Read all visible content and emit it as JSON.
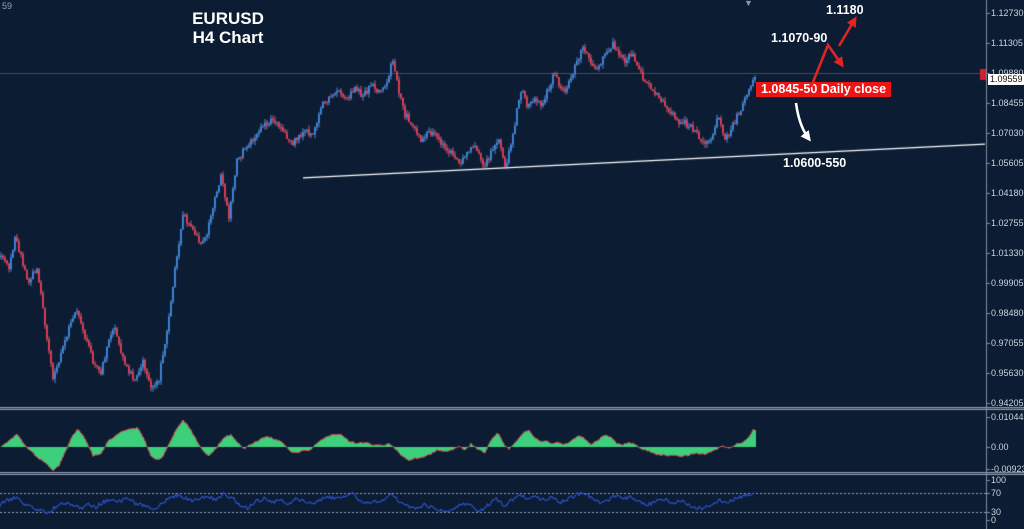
{
  "meta": {
    "leftover_text": "59",
    "caret_glyph": "▼"
  },
  "header": {
    "title_line1": "EURUSD",
    "title_line2": "H4 Chart"
  },
  "annotations": {
    "target_upper": "1.1180",
    "resistance_zone": "1.1070-90",
    "daily_close": "1.0845-50 Daily close",
    "support_zone": "1.0600-550"
  },
  "colors": {
    "background": "#0b1c33",
    "grid_line": "#3e4e62",
    "separator_light": "#929eae",
    "separator_dark": "#36415a",
    "axis_border": "#7f8fa0",
    "axis_text": "#cdd5dd",
    "candle_up": "#3f86de",
    "candle_up_wick": "#6fa5e6",
    "candle_down": "#e23c55",
    "candle_down_wick": "#e87286",
    "macd_fill": "#3ecf7d",
    "macd_line": "#cf4752",
    "rsi_line": "#2d51c8",
    "rsi_level": "#97a3b2",
    "trendline": "#ffffff",
    "badge_red": "#ee1414",
    "arrow_red": "#e02424",
    "arrow_white": "#ffffff",
    "current_price_marker": "#d02030"
  },
  "chart_data": [
    {
      "type": "candlestick",
      "symbol": "EURUSD",
      "timeframe": "H4",
      "title": "EURUSD H4 Chart",
      "panel": "price",
      "y_axis_labels": [
        "1.12730",
        "1.11305",
        "1.09880",
        "1.08455",
        "1.07030",
        "1.05605",
        "1.04180",
        "1.02755",
        "1.01330",
        "0.99905",
        "0.98480",
        "0.97055",
        "0.95630",
        "0.94205"
      ],
      "current_price_label": "1.09559",
      "current_price": 1.09559,
      "horizontal_level": 1.0988,
      "trendline_points": [
        [
          303,
          1.049
        ],
        [
          985,
          1.065
        ]
      ],
      "price_path_anchors": [
        [
          0,
          1.013
        ],
        [
          8,
          1.006
        ],
        [
          14,
          1.021
        ],
        [
          20,
          1.012
        ],
        [
          28,
          0.999
        ],
        [
          36,
          1.007
        ],
        [
          44,
          0.98
        ],
        [
          52,
          0.953
        ],
        [
          58,
          0.962
        ],
        [
          64,
          0.972
        ],
        [
          70,
          0.981
        ],
        [
          76,
          0.986
        ],
        [
          84,
          0.974
        ],
        [
          92,
          0.962
        ],
        [
          100,
          0.957
        ],
        [
          108,
          0.971
        ],
        [
          114,
          0.979
        ],
        [
          120,
          0.966
        ],
        [
          127,
          0.958
        ],
        [
          134,
          0.952
        ],
        [
          142,
          0.962
        ],
        [
          150,
          0.949
        ],
        [
          158,
          0.954
        ],
        [
          166,
          0.976
        ],
        [
          174,
          1.006
        ],
        [
          182,
          1.031
        ],
        [
          190,
          1.026
        ],
        [
          198,
          1.018
        ],
        [
          206,
          1.022
        ],
        [
          214,
          1.04
        ],
        [
          220,
          1.049
        ],
        [
          228,
          1.031
        ],
        [
          236,
          1.057
        ],
        [
          244,
          1.063
        ],
        [
          252,
          1.068
        ],
        [
          262,
          1.074
        ],
        [
          272,
          1.077
        ],
        [
          282,
          1.07
        ],
        [
          292,
          1.066
        ],
        [
          302,
          1.071
        ],
        [
          312,
          1.07
        ],
        [
          322,
          1.084
        ],
        [
          330,
          1.087
        ],
        [
          338,
          1.09
        ],
        [
          346,
          1.086
        ],
        [
          354,
          1.091
        ],
        [
          362,
          1.088
        ],
        [
          370,
          1.093
        ],
        [
          378,
          1.09
        ],
        [
          386,
          1.095
        ],
        [
          392,
          1.105
        ],
        [
          398,
          1.089
        ],
        [
          404,
          1.079
        ],
        [
          412,
          1.074
        ],
        [
          420,
          1.067
        ],
        [
          427,
          1.072
        ],
        [
          434,
          1.069
        ],
        [
          442,
          1.064
        ],
        [
          450,
          1.061
        ],
        [
          458,
          1.056
        ],
        [
          466,
          1.061
        ],
        [
          474,
          1.064
        ],
        [
          483,
          1.053
        ],
        [
          490,
          1.061
        ],
        [
          498,
          1.066
        ],
        [
          505,
          1.053
        ],
        [
          512,
          1.07
        ],
        [
          520,
          1.091
        ],
        [
          527,
          1.083
        ],
        [
          534,
          1.087
        ],
        [
          541,
          1.083
        ],
        [
          548,
          1.092
        ],
        [
          553,
          1.098
        ],
        [
          558,
          1.094
        ],
        [
          564,
          1.09
        ],
        [
          570,
          1.097
        ],
        [
          576,
          1.104
        ],
        [
          582,
          1.111
        ],
        [
          588,
          1.105
        ],
        [
          594,
          1.101
        ],
        [
          600,
          1.104
        ],
        [
          606,
          1.108
        ],
        [
          612,
          1.113
        ],
        [
          618,
          1.108
        ],
        [
          624,
          1.105
        ],
        [
          630,
          1.108
        ],
        [
          636,
          1.103
        ],
        [
          642,
          1.097
        ],
        [
          648,
          1.094
        ],
        [
          654,
          1.09
        ],
        [
          660,
          1.086
        ],
        [
          666,
          1.082
        ],
        [
          672,
          1.079
        ],
        [
          678,
          1.076
        ],
        [
          684,
          1.075
        ],
        [
          690,
          1.073
        ],
        [
          696,
          1.07
        ],
        [
          702,
          1.067
        ],
        [
          708,
          1.065
        ],
        [
          714,
          1.074
        ],
        [
          719,
          1.078
        ],
        [
          723,
          1.067
        ],
        [
          728,
          1.07
        ],
        [
          734,
          1.076
        ],
        [
          740,
          1.082
        ],
        [
          746,
          1.088
        ],
        [
          752,
          1.0956
        ]
      ]
    },
    {
      "type": "area",
      "name": "macd-histogram",
      "panel": "indicator-1",
      "y_axis_labels": [
        "0.010442",
        "0.00",
        "-0.009236"
      ],
      "zero": 0,
      "anchors": [
        [
          0,
          0.0
        ],
        [
          8,
          0.002
        ],
        [
          16,
          0.0044
        ],
        [
          24,
          0.0005
        ],
        [
          30,
          -0.0015
        ],
        [
          38,
          -0.004
        ],
        [
          46,
          -0.006
        ],
        [
          52,
          -0.008
        ],
        [
          58,
          -0.0065
        ],
        [
          64,
          -0.002
        ],
        [
          70,
          0.003
        ],
        [
          77,
          0.0064
        ],
        [
          84,
          0.003
        ],
        [
          92,
          -0.003
        ],
        [
          100,
          -0.0025
        ],
        [
          107,
          0.002
        ],
        [
          115,
          0.004
        ],
        [
          122,
          0.0055
        ],
        [
          130,
          0.0062
        ],
        [
          137,
          0.0067
        ],
        [
          144,
          0.002
        ],
        [
          150,
          -0.003
        ],
        [
          155,
          -0.0047
        ],
        [
          162,
          -0.0035
        ],
        [
          168,
          0.001
        ],
        [
          175,
          0.006
        ],
        [
          182,
          0.0094
        ],
        [
          188,
          0.007
        ],
        [
          196,
          0.002
        ],
        [
          203,
          -0.002
        ],
        [
          208,
          -0.003
        ],
        [
          214,
          -0.001
        ],
        [
          222,
          0.003
        ],
        [
          230,
          0.0044
        ],
        [
          238,
          0.001
        ],
        [
          243,
          -0.0007
        ],
        [
          250,
          0.001
        ],
        [
          258,
          0.0025
        ],
        [
          267,
          0.0037
        ],
        [
          276,
          0.0025
        ],
        [
          284,
          0.0008
        ],
        [
          290,
          -0.0015
        ],
        [
          296,
          -0.002
        ],
        [
          302,
          -0.001
        ],
        [
          308,
          -0.0012
        ],
        [
          315,
          0.001
        ],
        [
          325,
          0.0035
        ],
        [
          333,
          0.0044
        ],
        [
          340,
          0.0044
        ],
        [
          348,
          0.002
        ],
        [
          356,
          0.0012
        ],
        [
          364,
          0.0015
        ],
        [
          372,
          0.0008
        ],
        [
          380,
          0.0005
        ],
        [
          388,
          0.0012
        ],
        [
          394,
          -0.0005
        ],
        [
          400,
          -0.003
        ],
        [
          407,
          -0.0045
        ],
        [
          414,
          -0.004
        ],
        [
          422,
          -0.0035
        ],
        [
          430,
          -0.0025
        ],
        [
          437,
          -0.001
        ],
        [
          444,
          -0.0015
        ],
        [
          452,
          -0.0008
        ],
        [
          458,
          0.0005
        ],
        [
          464,
          -0.0012
        ],
        [
          470,
          0.0012
        ],
        [
          477,
          -0.001
        ],
        [
          484,
          -0.0018
        ],
        [
          490,
          0.0025
        ],
        [
          497,
          0.0052
        ],
        [
          503,
          0.001
        ],
        [
          508,
          -0.0008
        ],
        [
          515,
          0.002
        ],
        [
          521,
          0.0045
        ],
        [
          527,
          0.006
        ],
        [
          533,
          0.0035
        ],
        [
          539,
          0.0018
        ],
        [
          545,
          0.0022
        ],
        [
          551,
          0.0012
        ],
        [
          557,
          0.0018
        ],
        [
          563,
          0.0008
        ],
        [
          570,
          0.002
        ],
        [
          577,
          0.004
        ],
        [
          583,
          0.0032
        ],
        [
          590,
          0.0008
        ],
        [
          597,
          0.0025
        ],
        [
          604,
          0.0042
        ],
        [
          610,
          0.0035
        ],
        [
          616,
          0.0012
        ],
        [
          622,
          0.0008
        ],
        [
          628,
          0.0018
        ],
        [
          634,
          0.0008
        ],
        [
          640,
          -0.0005
        ],
        [
          648,
          -0.0015
        ],
        [
          656,
          -0.0025
        ],
        [
          664,
          -0.003
        ],
        [
          672,
          -0.0028
        ],
        [
          680,
          -0.0032
        ],
        [
          688,
          -0.0028
        ],
        [
          696,
          -0.0022
        ],
        [
          704,
          -0.0025
        ],
        [
          710,
          -0.0015
        ],
        [
          716,
          -0.0008
        ],
        [
          722,
          0.0005
        ],
        [
          728,
          -0.0005
        ],
        [
          734,
          0.0008
        ],
        [
          740,
          0.0015
        ],
        [
          746,
          0.0028
        ],
        [
          752,
          0.0058
        ]
      ]
    },
    {
      "type": "line",
      "name": "rsi",
      "panel": "indicator-2",
      "y_axis_labels": [
        "100",
        "70",
        "30",
        "0"
      ],
      "levels": [
        70,
        30
      ],
      "anchors": [
        [
          0,
          45
        ],
        [
          8,
          55
        ],
        [
          16,
          62
        ],
        [
          24,
          48
        ],
        [
          32,
          40
        ],
        [
          40,
          35
        ],
        [
          48,
          28
        ],
        [
          56,
          42
        ],
        [
          64,
          50
        ],
        [
          72,
          45
        ],
        [
          80,
          38
        ],
        [
          88,
          45
        ],
        [
          96,
          40
        ],
        [
          104,
          52
        ],
        [
          112,
          58
        ],
        [
          120,
          52
        ],
        [
          128,
          60
        ],
        [
          136,
          48
        ],
        [
          144,
          42
        ],
        [
          152,
          35
        ],
        [
          160,
          45
        ],
        [
          168,
          58
        ],
        [
          176,
          65
        ],
        [
          184,
          60
        ],
        [
          192,
          52
        ],
        [
          200,
          58
        ],
        [
          208,
          62
        ],
        [
          216,
          55
        ],
        [
          224,
          68
        ],
        [
          232,
          60
        ],
        [
          240,
          45
        ],
        [
          248,
          38
        ],
        [
          256,
          52
        ],
        [
          264,
          58
        ],
        [
          272,
          50
        ],
        [
          280,
          55
        ],
        [
          288,
          45
        ],
        [
          296,
          58
        ],
        [
          304,
          52
        ],
        [
          312,
          48
        ],
        [
          320,
          55
        ],
        [
          328,
          62
        ],
        [
          336,
          58
        ],
        [
          344,
          65
        ],
        [
          352,
          70
        ],
        [
          360,
          55
        ],
        [
          368,
          48
        ],
        [
          376,
          52
        ],
        [
          384,
          58
        ],
        [
          392,
          68
        ],
        [
          400,
          52
        ],
        [
          408,
          42
        ],
        [
          416,
          38
        ],
        [
          424,
          45
        ],
        [
          432,
          40
        ],
        [
          440,
          35
        ],
        [
          448,
          32
        ],
        [
          456,
          40
        ],
        [
          464,
          48
        ],
        [
          472,
          42
        ],
        [
          480,
          32
        ],
        [
          488,
          45
        ],
        [
          496,
          58
        ],
        [
          504,
          42
        ],
        [
          512,
          55
        ],
        [
          520,
          68
        ],
        [
          528,
          58
        ],
        [
          536,
          62
        ],
        [
          544,
          55
        ],
        [
          552,
          62
        ],
        [
          560,
          50
        ],
        [
          568,
          58
        ],
        [
          576,
          66
        ],
        [
          584,
          72
        ],
        [
          592,
          60
        ],
        [
          600,
          48
        ],
        [
          608,
          55
        ],
        [
          616,
          65
        ],
        [
          624,
          58
        ],
        [
          632,
          62
        ],
        [
          640,
          52
        ],
        [
          648,
          45
        ],
        [
          656,
          52
        ],
        [
          664,
          58
        ],
        [
          672,
          48
        ],
        [
          680,
          55
        ],
        [
          688,
          45
        ],
        [
          696,
          40
        ],
        [
          704,
          38
        ],
        [
          712,
          48
        ],
        [
          720,
          55
        ],
        [
          728,
          50
        ],
        [
          736,
          58
        ],
        [
          744,
          64
        ],
        [
          752,
          68
        ]
      ]
    }
  ]
}
